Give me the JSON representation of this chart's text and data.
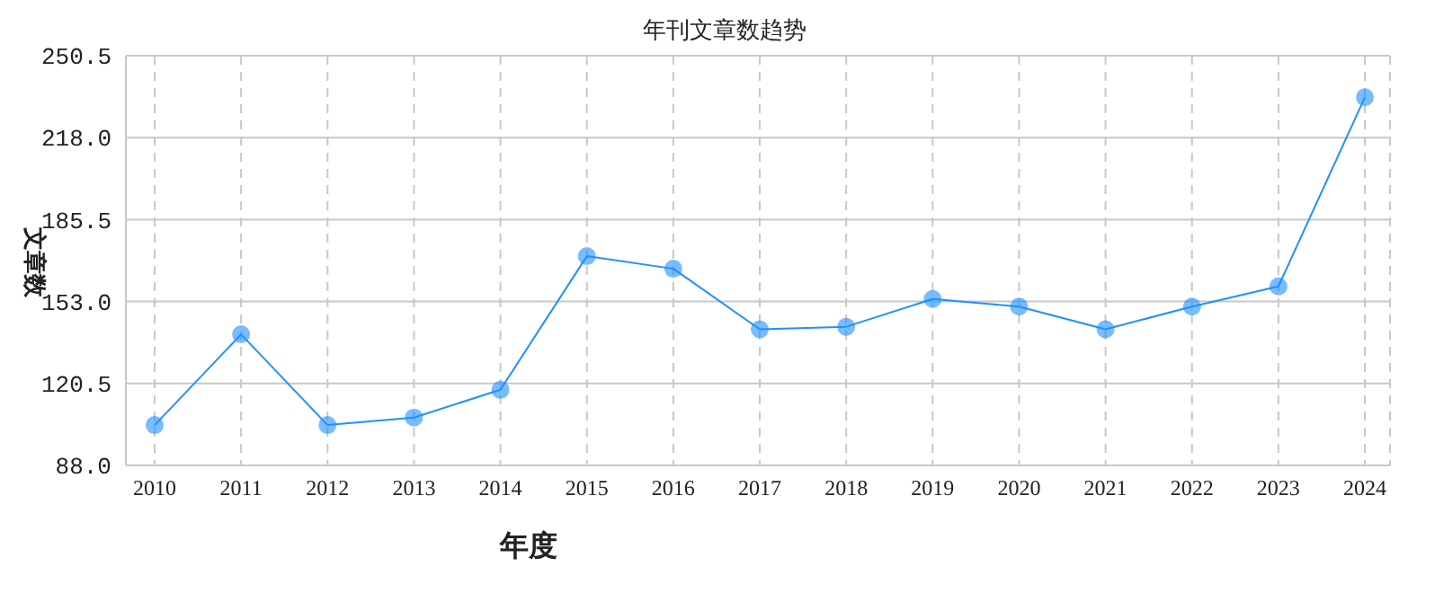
{
  "chart_data": {
    "type": "line",
    "title": "年刊文章数趋势",
    "xlabel": "年度",
    "ylabel": "文章数",
    "categories": [
      "2010",
      "2011",
      "2012",
      "2013",
      "2014",
      "2015",
      "2016",
      "2017",
      "2018",
      "2019",
      "2020",
      "2021",
      "2022",
      "2023",
      "2024"
    ],
    "series": [
      {
        "color": "#1e90ff",
        "values": [
          104,
          140,
          104,
          107,
          118,
          171,
          166,
          142,
          143,
          154,
          151,
          142,
          151,
          159,
          234
        ]
      }
    ],
    "ylim": [
      88,
      250.5
    ],
    "yticks": [
      {
        "value": 88,
        "label": "88.0"
      },
      120.5,
      {
        "value": 153,
        "label": "153.0"
      },
      185.5,
      {
        "value": 218,
        "label": "218.0"
      },
      250.5
    ],
    "grid": true,
    "marker": "circle",
    "line_style": "solid"
  }
}
